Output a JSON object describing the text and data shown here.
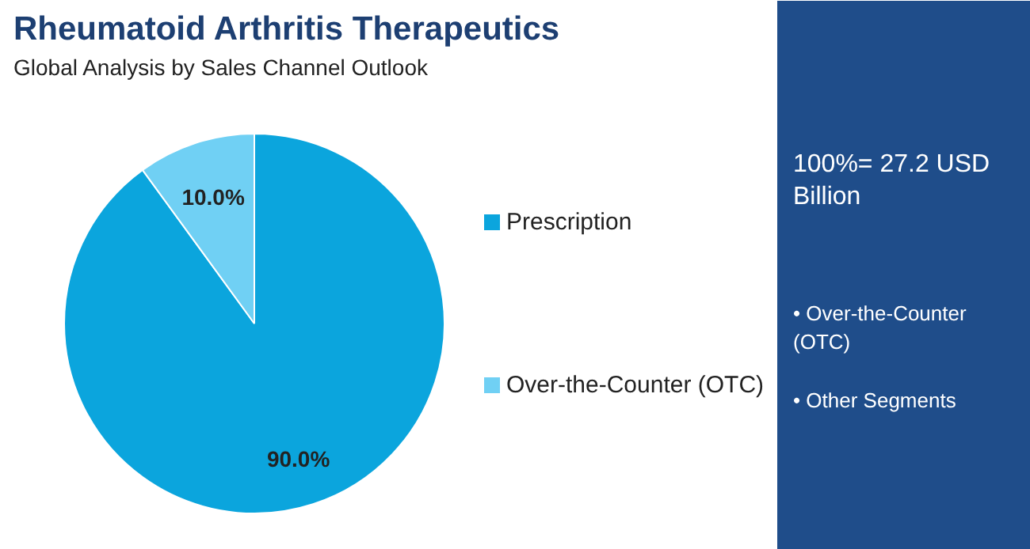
{
  "chart_data": {
    "type": "pie",
    "title": "Rheumatoid Arthritis Therapeutics",
    "subtitle": "Global Analysis by Sales Channel Outlook",
    "categories": [
      "Prescription",
      "Over-the-Counter (OTC)"
    ],
    "values": [
      90.0,
      10.0
    ],
    "colors": [
      "#0ba5dd",
      "#70d0f4"
    ],
    "value_labels": [
      "90.0%",
      "10.0%"
    ],
    "legend": "right",
    "annotations": [
      "100%= 27.2 USD Billion",
      "• Over-the-Counter (OTC)",
      "• Other Segments"
    ]
  }
}
